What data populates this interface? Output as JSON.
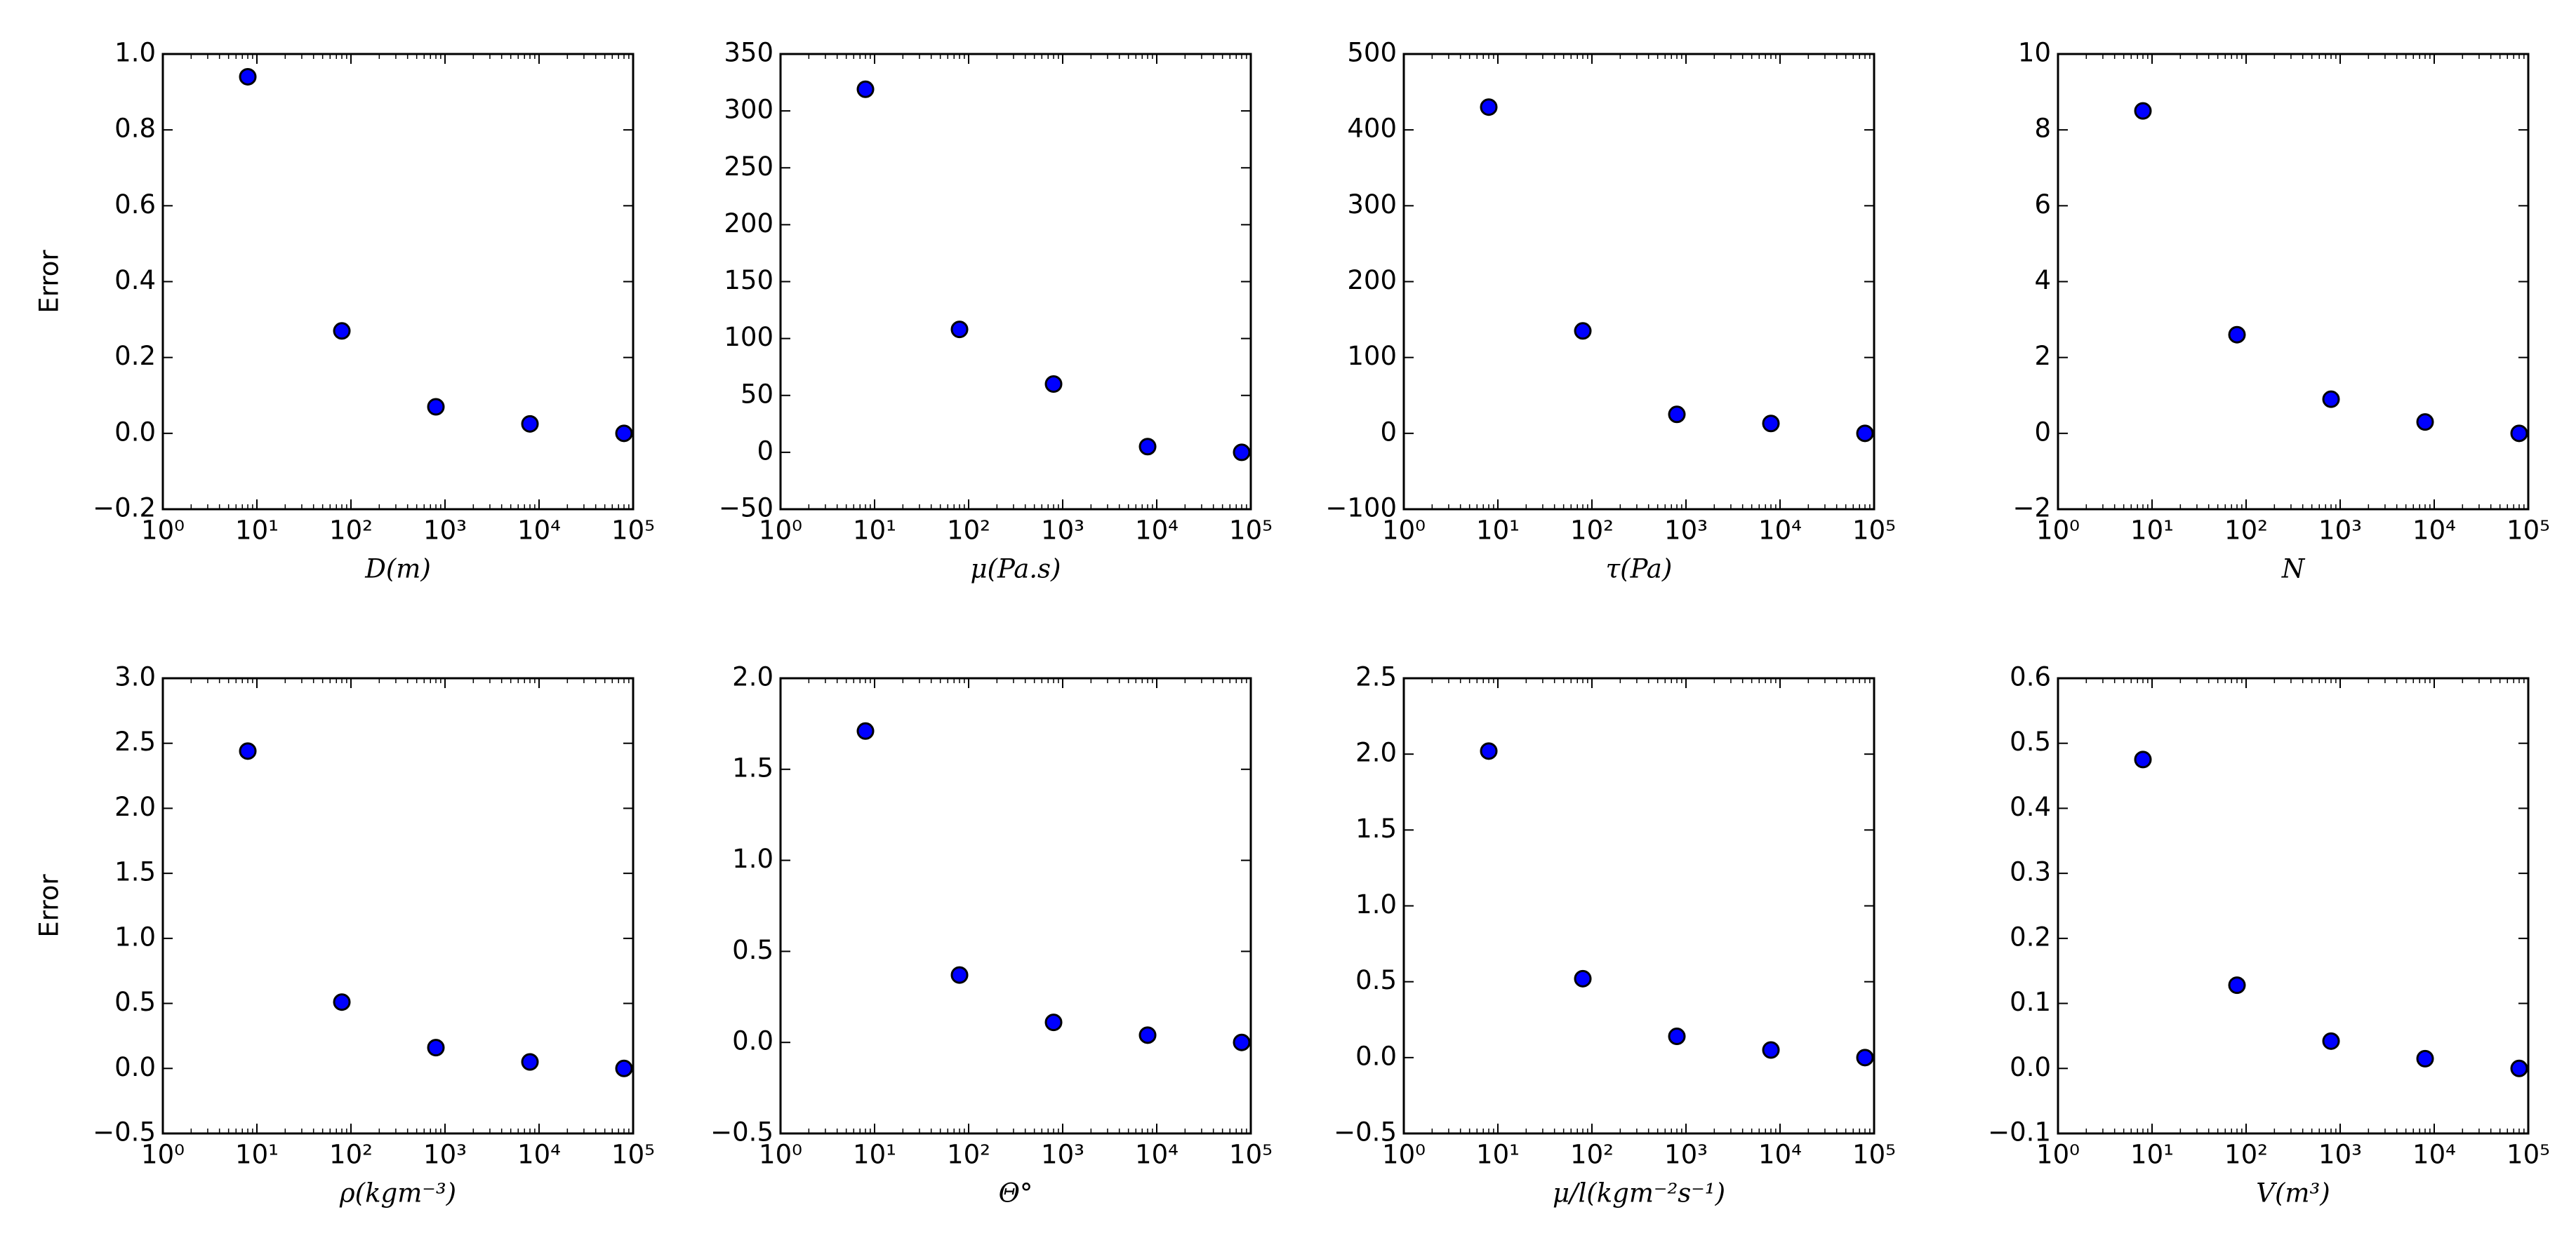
{
  "figure": {
    "point_color": "#0000ff",
    "point_edge_color": "#000000"
  },
  "chart_data": [
    {
      "type": "scatter",
      "xscale": "log",
      "xlim": [
        1,
        100000
      ],
      "ylim": [
        -0.2,
        1.0
      ],
      "yticks": [
        "−0.2",
        "0.0",
        "0.2",
        "0.4",
        "0.6",
        "0.8",
        "1.0"
      ],
      "xlabel": "D(m)",
      "ylabel": "Error",
      "x": [
        8,
        80,
        800,
        8000,
        80000
      ],
      "y": [
        0.94,
        0.27,
        0.07,
        0.025,
        0.0
      ]
    },
    {
      "type": "scatter",
      "xscale": "log",
      "xlim": [
        1,
        100000
      ],
      "ylim": [
        -50,
        350
      ],
      "yticks": [
        "−50",
        "0",
        "50",
        "100",
        "150",
        "200",
        "250",
        "300",
        "350"
      ],
      "xlabel": "μ(Pa.s)",
      "ylabel": "",
      "x": [
        8,
        80,
        800,
        8000,
        80000
      ],
      "y": [
        319,
        108,
        60,
        5,
        0
      ]
    },
    {
      "type": "scatter",
      "xscale": "log",
      "xlim": [
        1,
        100000
      ],
      "ylim": [
        -100,
        500
      ],
      "yticks": [
        "−100",
        "0",
        "100",
        "200",
        "300",
        "400",
        "500"
      ],
      "xlabel": "τ(Pa)",
      "ylabel": "",
      "x": [
        8,
        80,
        800,
        8000,
        80000
      ],
      "y": [
        430,
        135,
        25,
        13,
        0
      ]
    },
    {
      "type": "scatter",
      "xscale": "log",
      "xlim": [
        1,
        100000
      ],
      "ylim": [
        -2,
        10
      ],
      "yticks": [
        "−2",
        "0",
        "2",
        "4",
        "6",
        "8",
        "10"
      ],
      "xlabel": "N",
      "ylabel": "",
      "x": [
        8,
        80,
        800,
        8000,
        80000
      ],
      "y": [
        8.5,
        2.6,
        0.9,
        0.3,
        0.0
      ]
    },
    {
      "type": "scatter",
      "xscale": "log",
      "xlim": [
        1,
        100000
      ],
      "ylim": [
        -0.5,
        3.0
      ],
      "yticks": [
        "−0.5",
        "0.0",
        "0.5",
        "1.0",
        "1.5",
        "2.0",
        "2.5",
        "3.0"
      ],
      "xlabel": "ρ(kgm⁻³)",
      "ylabel": "Error",
      "x": [
        8,
        80,
        800,
        8000,
        80000
      ],
      "y": [
        2.44,
        0.51,
        0.16,
        0.05,
        0.0
      ]
    },
    {
      "type": "scatter",
      "xscale": "log",
      "xlim": [
        1,
        100000
      ],
      "ylim": [
        -0.5,
        2.0
      ],
      "yticks": [
        "−0.5",
        "0.0",
        "0.5",
        "1.0",
        "1.5",
        "2.0"
      ],
      "xlabel": "Θ°",
      "ylabel": "",
      "x": [
        8,
        80,
        800,
        8000,
        80000
      ],
      "y": [
        1.71,
        0.37,
        0.11,
        0.04,
        0.0
      ]
    },
    {
      "type": "scatter",
      "xscale": "log",
      "xlim": [
        1,
        100000
      ],
      "ylim": [
        -0.5,
        2.5
      ],
      "yticks": [
        "−0.5",
        "0.0",
        "0.5",
        "1.0",
        "1.5",
        "2.0",
        "2.5"
      ],
      "xlabel": "μ/l(kgm⁻²s⁻¹)",
      "ylabel": "",
      "x": [
        8,
        80,
        800,
        8000,
        80000
      ],
      "y": [
        2.02,
        0.52,
        0.14,
        0.05,
        0.0
      ]
    },
    {
      "type": "scatter",
      "xscale": "log",
      "xlim": [
        1,
        100000
      ],
      "ylim": [
        -0.1,
        0.6
      ],
      "yticks": [
        "−0.1",
        "0.0",
        "0.1",
        "0.2",
        "0.3",
        "0.4",
        "0.5",
        "0.6"
      ],
      "xlabel": "V(m³)",
      "ylabel": "",
      "x": [
        8,
        80,
        800,
        8000,
        80000
      ],
      "y": [
        0.475,
        0.128,
        0.042,
        0.015,
        0.0
      ]
    }
  ]
}
